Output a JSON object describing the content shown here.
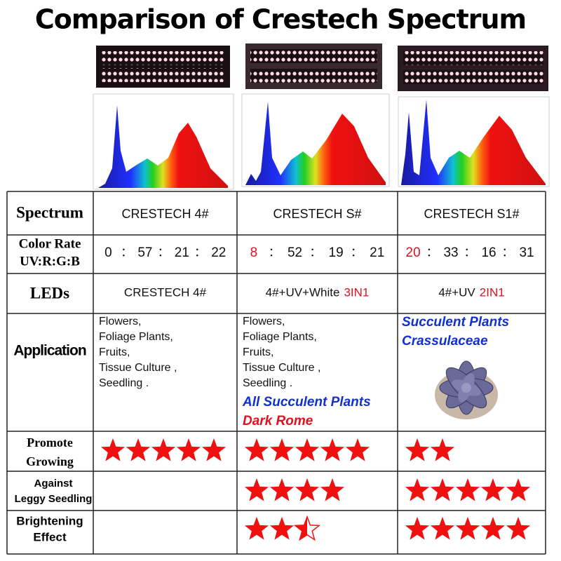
{
  "title": "Comparison of Crestech Spectrum",
  "row_labels": {
    "spectrum": "Spectrum",
    "color_rate": [
      "Color Rate",
      "UV:R:G:B"
    ],
    "leds": "LEDs",
    "application": "Application",
    "promote": [
      "Promote",
      "Growing"
    ],
    "against": [
      "Against",
      "Leggy Seedling"
    ],
    "brightening": [
      "Brightening",
      "Effect"
    ]
  },
  "products": [
    "CRESTECH 4#",
    "CRESTECH S#",
    "CRESTECH S1#"
  ],
  "separator": "：",
  "color_rates": [
    [
      0,
      57,
      21,
      22
    ],
    [
      8,
      52,
      19,
      21
    ],
    [
      20,
      33,
      16,
      31
    ]
  ],
  "leds": [
    {
      "text": "CRESTECH 4#"
    },
    {
      "text": "4#+UV+White",
      "tag": "3IN1"
    },
    {
      "text": "4#+UV",
      "tag": "2IN1"
    }
  ],
  "applications": [
    {
      "lines": [
        "Flowers,",
        "Foliage Plants,",
        "Fruits,",
        "Tissue Culture ,",
        "Seedling ."
      ]
    },
    {
      "lines": [
        "Flowers,",
        "Foliage Plants,",
        "Fruits,",
        "Tissue Culture ,",
        "Seedling ."
      ],
      "highlight": "All Succulent Plants",
      "note": "Dark Rome"
    },
    {
      "highlight_lines": [
        "Succulent Plants",
        "Crassulaceae"
      ]
    }
  ],
  "ratings": {
    "promote": [
      5,
      5,
      2
    ],
    "against": [
      null,
      4,
      5
    ],
    "brightening": [
      null,
      2.5,
      5
    ]
  }
}
